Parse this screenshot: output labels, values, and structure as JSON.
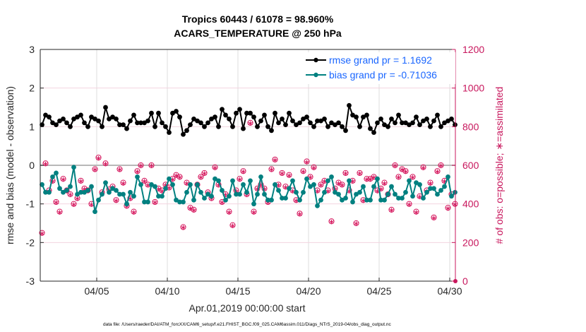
{
  "chart_data": {
    "type": "line",
    "title": [
      "Tropics 60443 / 61078 = 98.960%",
      "ACARS_TEMPERATURE @ 250 hPa"
    ],
    "xlabel": "Apr.01,2019 00:00:00 start",
    "ylabel": "rmse and bias (model - observation)",
    "y2label": "# of obs: o=possible; ∗=assimilated",
    "footnote": "data file: /Users/raeder/DAI/ATM_forcXX/CAM6_setup/f.e21.FHIST_BGC.f09_025.CAM6assim.011/Diags_NTrS_2019-04/obs_diag_output.nc",
    "xlim": [
      0,
      29.4
    ],
    "ylim": [
      -3,
      3
    ],
    "y2lim": [
      0,
      1200
    ],
    "x_ticks": [
      {
        "x": 4,
        "label": "04/05"
      },
      {
        "x": 9,
        "label": "04/10"
      },
      {
        "x": 14,
        "label": "04/15"
      },
      {
        "x": 19,
        "label": "04/20"
      },
      {
        "x": 24,
        "label": "04/25"
      },
      {
        "x": 29,
        "label": "04/30"
      }
    ],
    "y_ticks": [
      "3",
      "2",
      "1",
      "0",
      "-1",
      "-2",
      "-3"
    ],
    "y2_ticks": [
      "1200",
      "1000",
      "800",
      "600",
      "400",
      "200",
      "0"
    ],
    "grid": true,
    "legend_position": "top-right",
    "x_step_days": 0.25,
    "series": [
      {
        "name": "rmse grand pr = 1.1692",
        "color": "#000000",
        "axis": "left",
        "values": [
          1.05,
          1.3,
          1.25,
          1.1,
          1.05,
          1.15,
          1.2,
          1.1,
          1.0,
          1.2,
          1.25,
          1.3,
          1.1,
          1.0,
          1.25,
          1.2,
          1.15,
          1.0,
          1.5,
          1.2,
          1.25,
          1.2,
          1.05,
          1.05,
          0.95,
          1.15,
          1.3,
          1.1,
          1.1,
          1.1,
          1.15,
          1.35,
          1.0,
          1.35,
          1.1,
          1.0,
          0.85,
          1.35,
          1.4,
          1.25,
          0.8,
          0.9,
          1.05,
          1.2,
          1.15,
          1.1,
          1.0,
          1.1,
          1.2,
          1.25,
          1.0,
          1.45,
          1.3,
          1.2,
          1.0,
          1.35,
          1.45,
          0.95,
          1.35,
          1.35,
          1.25,
          1.0,
          1.15,
          1.3,
          1.0,
          0.9,
          1.35,
          1.1,
          1.2,
          1.05,
          1.35,
          1.15,
          1.05,
          1.1,
          1.2,
          1.25,
          1.1,
          1.0,
          1.15,
          1.15,
          1.2,
          1.0,
          1.1,
          1.05,
          1.1,
          1.0,
          0.9,
          1.55,
          1.3,
          1.25,
          1.0,
          1.25,
          1.3,
          0.95,
          0.85,
          1.1,
          1.2,
          1.05,
          1.0,
          1.2,
          1.1,
          1.3,
          1.1,
          1.1,
          1.05,
          1.1,
          1.25,
          1.05,
          1.15,
          1.2,
          1.0,
          1.15,
          1.3,
          1.0,
          1.1,
          1.15,
          1.2,
          1.05,
          1.3,
          1.25
        ]
      },
      {
        "name": "bias grand pr = -0.71036",
        "color": "#008080",
        "axis": "left",
        "values": [
          -0.5,
          -0.7,
          -0.7,
          -0.3,
          -0.2,
          -0.6,
          -0.7,
          -0.65,
          -0.55,
          -0.05,
          -0.75,
          -0.7,
          -0.7,
          -0.65,
          -0.55,
          -1.2,
          -0.9,
          -0.75,
          -0.45,
          -0.7,
          -0.6,
          -0.65,
          -0.75,
          -0.75,
          -1.0,
          -0.7,
          -0.8,
          -0.3,
          -0.5,
          -0.95,
          -0.95,
          -0.5,
          -0.55,
          -0.8,
          -0.8,
          -0.6,
          -0.35,
          -0.5,
          -0.9,
          -0.95,
          -0.95,
          -0.7,
          -0.5,
          -0.9,
          -0.5,
          -0.7,
          -0.85,
          -0.75,
          -0.8,
          -0.35,
          -0.4,
          -0.65,
          -0.9,
          -0.8,
          -0.4,
          -0.75,
          -0.75,
          -0.5,
          -0.7,
          -0.4,
          -1.0,
          -0.75,
          -0.3,
          -0.75,
          -0.9,
          -0.9,
          -0.5,
          -0.65,
          -0.85,
          -0.85,
          -0.6,
          -0.4,
          -0.7,
          -0.9,
          -0.7,
          -0.35,
          -0.55,
          -0.5,
          -1.05,
          -0.9,
          -0.7,
          -0.4,
          -0.3,
          -0.7,
          -0.75,
          -0.9,
          -0.85,
          -0.4,
          -0.95,
          -0.75,
          -0.7,
          -0.55,
          -0.9,
          -0.9,
          -0.55,
          -0.35,
          -0.9,
          -0.9,
          -0.75,
          -0.55,
          -0.75,
          -0.85,
          -0.85,
          -0.7,
          -0.4,
          -0.8,
          -0.45,
          -0.5,
          -0.85,
          -0.7,
          -0.6,
          -0.6,
          -0.75,
          -0.65,
          -0.55,
          -0.3,
          -0.8,
          -0.7,
          -0.9,
          -0.45
        ]
      },
      {
        "name": "obs possible",
        "color": "#d6195f",
        "axis": "right",
        "marker": "o",
        "values": [
          250,
          610,
          470,
          520,
          410,
          360,
          530,
          470,
          450,
          400,
          430,
          520,
          480,
          470,
          400,
          580,
          640,
          460,
          610,
          475,
          490,
          420,
          580,
          510,
          390,
          430,
          360,
          570,
          600,
          520,
          500,
          600,
          410,
          480,
          470,
          500,
          485,
          530,
          550,
          540,
          280,
          510,
          380,
          370,
          500,
          540,
          560,
          460,
          430,
          590,
          500,
          410,
          450,
          360,
          290,
          470,
          530,
          570,
          450,
          820,
          360,
          480,
          500,
          480,
          410,
          580,
          630,
          500,
          560,
          490,
          550,
          470,
          420,
          350,
          570,
          620,
          540,
          590,
          470,
          500,
          520,
          470,
          310,
          480,
          510,
          500,
          560,
          470,
          520,
          300,
          560,
          420,
          530,
          530,
          540,
          470,
          480,
          510,
          450,
          370,
          600,
          540,
          580,
          570,
          400,
          540,
          360,
          440,
          590,
          470,
          510,
          330,
          570,
          600,
          520,
          380,
          450,
          400,
          600,
          470
        ]
      },
      {
        "name": "obs assimilated",
        "color": "#d6195f",
        "axis": "right",
        "marker": "*",
        "values": [
          240,
          600,
          460,
          510,
          400,
          350,
          520,
          460,
          440,
          390,
          420,
          510,
          470,
          460,
          390,
          570,
          630,
          450,
          600,
          465,
          480,
          410,
          570,
          500,
          380,
          420,
          350,
          560,
          590,
          510,
          490,
          590,
          400,
          470,
          460,
          490,
          475,
          520,
          540,
          530,
          270,
          500,
          370,
          360,
          490,
          530,
          550,
          450,
          420,
          580,
          490,
          400,
          440,
          350,
          280,
          460,
          520,
          560,
          440,
          810,
          350,
          470,
          490,
          470,
          400,
          570,
          620,
          490,
          550,
          480,
          540,
          460,
          410,
          340,
          560,
          610,
          530,
          580,
          460,
          490,
          510,
          460,
          300,
          470,
          500,
          490,
          550,
          460,
          510,
          290,
          550,
          410,
          520,
          520,
          530,
          460,
          470,
          500,
          440,
          360,
          590,
          530,
          570,
          560,
          390,
          530,
          350,
          430,
          580,
          460,
          500,
          320,
          560,
          590,
          510,
          370,
          440,
          390,
          590,
          460
        ]
      }
    ]
  }
}
